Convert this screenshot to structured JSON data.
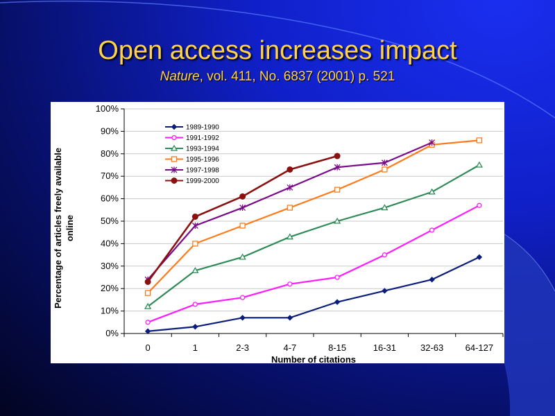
{
  "slide": {
    "title": "Open access increases impact",
    "subtitle_journal": "Nature",
    "subtitle_rest": ", vol. 411, No. 6837 (2001) p. 521"
  },
  "chart_data": {
    "type": "line",
    "xlabel": "Number of citations",
    "ylabel_line1": "Percentage of articles freely available",
    "ylabel_line2": "online",
    "categories": [
      "0",
      "1",
      "2-3",
      "4-7",
      "8-15",
      "16-31",
      "32-63",
      "64-127"
    ],
    "ylim": [
      0,
      100
    ],
    "yticks": [
      "0%",
      "10%",
      "20%",
      "30%",
      "40%",
      "50%",
      "60%",
      "70%",
      "80%",
      "90%",
      "100%"
    ],
    "legend_position": "top-left",
    "grid": true,
    "series": [
      {
        "name": "1989-1990",
        "color": "#0b1d7a",
        "marker": "diamond",
        "values": [
          1,
          3,
          7,
          7,
          14,
          19,
          24,
          34
        ]
      },
      {
        "name": "1991-1992",
        "color": "#ff1aff",
        "marker": "circle-open",
        "values": [
          5,
          13,
          16,
          22,
          25,
          35,
          46,
          57
        ]
      },
      {
        "name": "1993-1994",
        "color": "#2e8b57",
        "marker": "triangle-open",
        "values": [
          12,
          28,
          34,
          43,
          50,
          56,
          63,
          75
        ]
      },
      {
        "name": "1995-1996",
        "color": "#ff7a1a",
        "marker": "square-open",
        "values": [
          18,
          40,
          48,
          56,
          64,
          73,
          84,
          86
        ]
      },
      {
        "name": "1997-1998",
        "color": "#7a0a8a",
        "marker": "star",
        "values": [
          24,
          48,
          56,
          65,
          74,
          76,
          85,
          null
        ]
      },
      {
        "name": "1999-2000",
        "color": "#8b1010",
        "marker": "circle-filled",
        "values": [
          23,
          52,
          61,
          73,
          79,
          null,
          null,
          null
        ]
      }
    ]
  }
}
